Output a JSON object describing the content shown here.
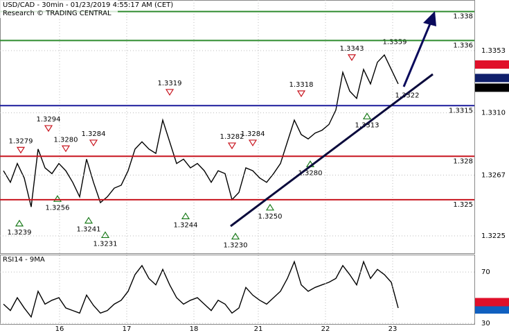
{
  "chart_data": [
    {
      "type": "line",
      "title": "USD/CAD - 30min - 01/23/2019 4:55:17 AM (CET)",
      "subtitle": "Research © TRADING CENTRAL",
      "xlim": [
        -0.5,
        68
      ],
      "ylim": [
        1.3213,
        1.3388
      ],
      "yticks": [
        1.3353,
        {
          "value": 1.331,
          "label": "1.3310"
        },
        1.3267,
        1.3225
      ],
      "x": [
        0,
        1,
        2,
        3,
        4,
        5,
        6,
        7,
        8,
        9,
        10,
        11,
        12,
        13,
        14,
        15,
        16,
        17,
        18,
        19,
        20,
        21,
        22,
        23,
        24,
        25,
        26,
        27,
        28,
        29,
        30,
        31,
        32,
        33,
        34,
        35,
        36,
        37,
        38,
        39,
        40,
        41,
        42,
        43,
        44,
        45,
        46,
        47,
        48,
        49,
        50,
        51,
        52,
        53,
        54,
        55,
        56,
        57
      ],
      "series": [
        {
          "color": "#000000",
          "values": [
            1.327,
            1.3262,
            1.3275,
            1.3265,
            1.3245,
            1.3285,
            1.3272,
            1.3268,
            1.3275,
            1.327,
            1.3262,
            1.3252,
            1.3278,
            1.3262,
            1.3248,
            1.3252,
            1.3258,
            1.326,
            1.327,
            1.3285,
            1.329,
            1.3285,
            1.3282,
            1.3305,
            1.329,
            1.3275,
            1.3278,
            1.3272,
            1.3275,
            1.327,
            1.3262,
            1.327,
            1.3268,
            1.325,
            1.3255,
            1.3272,
            1.327,
            1.3265,
            1.3262,
            1.3268,
            1.3275,
            1.329,
            1.3305,
            1.3295,
            1.3292,
            1.3296,
            1.3298,
            1.3302,
            1.3312,
            1.3338,
            1.3325,
            1.332,
            1.334,
            1.333,
            1.3345,
            1.335,
            1.334,
            1.333
          ]
        }
      ],
      "levels": [
        {
          "value": 1.338,
          "color": "#2e8b2e"
        },
        {
          "value": 1.336,
          "color": "#2e8b2e"
        },
        {
          "value": 1.3315,
          "color": "#1a1a9c"
        },
        {
          "value": 1.328,
          "color": "#c8141e"
        },
        {
          "value": 1.325,
          "color": "#c8141e"
        }
      ],
      "markers": [
        {
          "value": 1.33434,
          "color": "#e0102a"
        },
        {
          "value": 1.33341,
          "color": "#10206c"
        },
        {
          "value": 1.33274,
          "color": "#000000"
        }
      ],
      "annotations": [
        {
          "value": 1.3279,
          "label": "1.3279",
          "x": 2.5,
          "kind": "peak"
        },
        {
          "value": 1.3294,
          "label": "1.3294",
          "x": 6.5,
          "kind": "peak"
        },
        {
          "value": 1.328,
          "label": "1.3280",
          "x": 9,
          "kind": "peak"
        },
        {
          "value": 1.3284,
          "label": "1.3284",
          "x": 13,
          "kind": "peak"
        },
        {
          "value": 1.3319,
          "label": "1.3319",
          "x": 24,
          "kind": "peak"
        },
        {
          "value": 1.3282,
          "label": "1.3282",
          "x": 33,
          "kind": "peak"
        },
        {
          "value": 1.3284,
          "label": "1.3284",
          "x": 36,
          "kind": "peak"
        },
        {
          "value": 1.3318,
          "label": "1.3318",
          "x": 43,
          "kind": "peak"
        },
        {
          "value": 1.3343,
          "label": "1.3343",
          "x": 50.3,
          "kind": "peak"
        },
        {
          "value": 1.3359,
          "label": "1.3359",
          "x": 56.5,
          "kind": "plain"
        },
        {
          "value": 1.3322,
          "label": "1.3322",
          "x": 58.3,
          "kind": "plain"
        },
        {
          "value": 1.3313,
          "label": "1.3313",
          "x": 52.5,
          "kind": "trough"
        },
        {
          "value": 1.328,
          "label": "1.3280",
          "x": 44.3,
          "kind": "trough"
        },
        {
          "value": 1.325,
          "label": "1.3250",
          "x": 38.5,
          "kind": "trough"
        },
        {
          "value": 1.323,
          "label": "1.3230",
          "x": 33.5,
          "kind": "trough"
        },
        {
          "value": 1.3244,
          "label": "1.3244",
          "x": 26.3,
          "kind": "trough"
        },
        {
          "value": 1.3231,
          "label": "1.3231",
          "x": 14.7,
          "kind": "trough"
        },
        {
          "value": 1.3241,
          "label": "1.3241",
          "x": 12.3,
          "kind": "trough"
        },
        {
          "value": 1.3256,
          "label": "1.3256",
          "x": 7.8,
          "kind": "trough"
        },
        {
          "value": 1.3239,
          "label": "1.3239",
          "x": 2.3,
          "kind": "trough"
        }
      ]
    },
    {
      "type": "line",
      "title": "RSI14 - 9MA",
      "xlim": [
        -0.5,
        68
      ],
      "ylim": [
        29,
        83
      ],
      "yticks": [
        70,
        30
      ],
      "xticks": [
        {
          "value": 8.1,
          "label": "16"
        },
        {
          "value": 17.8,
          "label": "17"
        },
        {
          "value": 27.5,
          "label": "18"
        },
        {
          "value": 36.8,
          "label": "21"
        },
        {
          "value": 46.5,
          "label": "22"
        },
        {
          "value": 56.2,
          "label": "23"
        }
      ],
      "x": [
        0,
        1,
        2,
        3,
        4,
        5,
        6,
        7,
        8,
        9,
        10,
        11,
        12,
        13,
        14,
        15,
        16,
        17,
        18,
        19,
        20,
        21,
        22,
        23,
        24,
        25,
        26,
        27,
        28,
        29,
        30,
        31,
        32,
        33,
        34,
        35,
        36,
        37,
        38,
        39,
        40,
        41,
        42,
        43,
        44,
        45,
        46,
        47,
        48,
        49,
        50,
        51,
        52,
        53,
        54,
        55,
        56,
        57
      ],
      "series": [
        {
          "color": "#000000",
          "values": [
            45,
            40,
            50,
            42,
            35,
            55,
            45,
            48,
            50,
            42,
            40,
            38,
            52,
            44,
            38,
            40,
            45,
            48,
            55,
            68,
            75,
            65,
            60,
            72,
            60,
            50,
            45,
            48,
            50,
            45,
            40,
            48,
            45,
            38,
            42,
            58,
            52,
            48,
            45,
            50,
            55,
            65,
            78,
            60,
            55,
            58,
            60,
            62,
            65,
            75,
            68,
            60,
            78,
            65,
            72,
            68,
            62,
            42
          ]
        }
      ],
      "markers": [
        {
          "value": 46.5591,
          "color": "#e0102a"
        },
        {
          "value": 40.8075,
          "color": "#1060c0"
        }
      ]
    }
  ]
}
